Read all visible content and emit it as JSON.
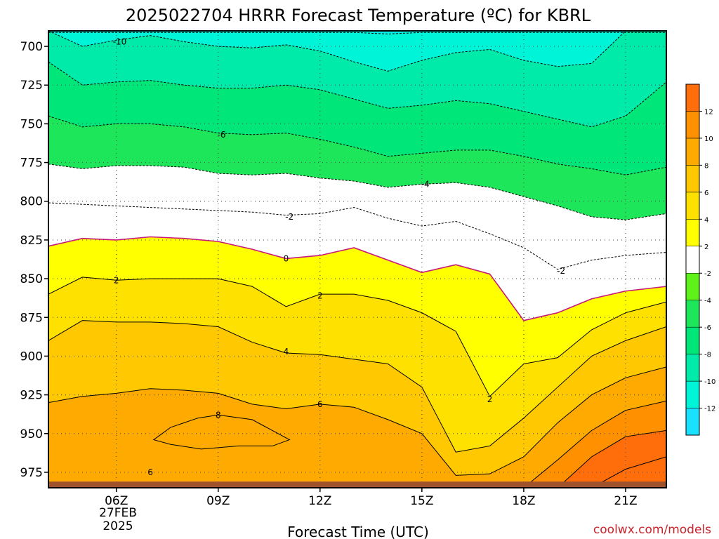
{
  "chart_data": {
    "type": "contour",
    "title": "2025022704 HRRR Forecast Temperature (ºC) for KBRL",
    "xlabel": "Forecast Time (UTC)",
    "credit": "coolwx.com/models",
    "x_ticks": [
      "06Z",
      "09Z",
      "12Z",
      "15Z",
      "18Z",
      "21Z"
    ],
    "x_hours": [
      6,
      9,
      12,
      15,
      18,
      21
    ],
    "date_label": [
      "27FEB",
      "2025"
    ],
    "xlim_hours": [
      4,
      22.2
    ],
    "y_ticks": [
      700,
      725,
      750,
      775,
      800,
      825,
      850,
      875,
      900,
      925,
      950,
      975
    ],
    "ylim": [
      690,
      985
    ],
    "ground_level_hpa": 981,
    "x_hours_profile": [
      4,
      5,
      6,
      7,
      8,
      9,
      10,
      11,
      12,
      13,
      14,
      15,
      16,
      17,
      18,
      19,
      20,
      21,
      22.2
    ],
    "isotherms": [
      {
        "label": "-12",
        "hpa": [
          691,
          691,
          691,
          691,
          691,
          691,
          691,
          691,
          691,
          691,
          692,
          691,
          691,
          691,
          691,
          691,
          691,
          691,
          691
        ]
      },
      {
        "label": "-10",
        "hpa": [
          690,
          700,
          696,
          693,
          697,
          700,
          701,
          699,
          703,
          710,
          716,
          709,
          704,
          702,
          709,
          713,
          711,
          690,
          690
        ]
      },
      {
        "label": "-8",
        "hpa": [
          710,
          725,
          723,
          722,
          725,
          727,
          727,
          725,
          728,
          734,
          740,
          738,
          735,
          737,
          742,
          747,
          752,
          745,
          723
        ]
      },
      {
        "label": "-6",
        "hpa": [
          745,
          752,
          750,
          750,
          752,
          756,
          757,
          756,
          760,
          765,
          771,
          769,
          767,
          767,
          771,
          776,
          779,
          783,
          778
        ]
      },
      {
        "label": "-4",
        "hpa": [
          776,
          779,
          777,
          777,
          778,
          782,
          783,
          782,
          785,
          787,
          791,
          789,
          788,
          791,
          797,
          803,
          810,
          812,
          808
        ]
      },
      {
        "label": "-2",
        "hpa": [
          801,
          802,
          803,
          804,
          805,
          806,
          807,
          809,
          808,
          804,
          811,
          816,
          813,
          821,
          830,
          844,
          838,
          835,
          833
        ]
      },
      {
        "label": "0",
        "hpa": [
          829,
          824,
          825,
          823,
          824,
          826,
          831,
          837,
          835,
          830,
          838,
          846,
          841,
          847,
          877,
          872,
          863,
          858,
          855
        ]
      },
      {
        "label": "2",
        "hpa": [
          860,
          849,
          851,
          850,
          850,
          850,
          855,
          868,
          860,
          860,
          864,
          872,
          884,
          926,
          905,
          901,
          883,
          872,
          865
        ]
      },
      {
        "label": "4",
        "hpa": [
          890,
          877,
          878,
          878,
          879,
          881,
          891,
          898,
          899,
          902,
          905,
          920,
          962,
          958,
          940,
          920,
          900,
          890,
          881
        ]
      },
      {
        "label": "6",
        "hpa": [
          930,
          926,
          924,
          921,
          922,
          924,
          931,
          934,
          931,
          933,
          941,
          950,
          977,
          976,
          965,
          943,
          925,
          914,
          907
        ]
      },
      {
        "label": "8",
        "hpa": [
          985,
          985,
          985,
          985,
          985,
          985,
          985,
          985,
          985,
          985,
          985,
          985,
          985,
          985,
          985,
          967,
          948,
          935,
          929
        ]
      },
      {
        "label": "10",
        "hpa": [
          985,
          985,
          985,
          985,
          985,
          985,
          985,
          985,
          985,
          985,
          985,
          985,
          985,
          985,
          985,
          985,
          965,
          952,
          948
        ]
      },
      {
        "label": "12",
        "hpa": [
          985,
          985,
          985,
          985,
          985,
          985,
          985,
          985,
          985,
          985,
          985,
          985,
          985,
          985,
          985,
          985,
          985,
          973,
          965
        ]
      }
    ],
    "warm_pocket_8": {
      "label": "8",
      "hours": [
        7.1,
        7.6,
        8.4,
        9.0,
        10.0,
        11.1,
        10.6,
        9.6,
        8.5,
        7.6,
        7.1
      ],
      "hpa": [
        954,
        946,
        940,
        938,
        941,
        954,
        958,
        958,
        960,
        957,
        954
      ]
    },
    "contour_labels": [
      {
        "text": "-10",
        "hour": 6.1,
        "hpa": 697
      },
      {
        "text": "-6",
        "hour": 9.1,
        "hpa": 757
      },
      {
        "text": "-4",
        "hour": 15.1,
        "hpa": 789
      },
      {
        "text": "-2",
        "hour": 11.1,
        "hpa": 810
      },
      {
        "text": "-2",
        "hour": 19.1,
        "hpa": 845
      },
      {
        "text": "0",
        "hour": 11.0,
        "hpa": 837
      },
      {
        "text": "2",
        "hour": 6.0,
        "hpa": 851
      },
      {
        "text": "2",
        "hour": 12.0,
        "hpa": 861
      },
      {
        "text": "2",
        "hour": 17.0,
        "hpa": 928
      },
      {
        "text": "4",
        "hour": 11.0,
        "hpa": 897
      },
      {
        "text": "6",
        "hour": 12.0,
        "hpa": 931
      },
      {
        "text": "6",
        "hour": 7.0,
        "hpa": 975
      },
      {
        "text": "8",
        "hour": 9.0,
        "hpa": 938
      }
    ],
    "colorbar": {
      "ticks": [
        "-12",
        "-10",
        "-8",
        "-6",
        "-4",
        "-2",
        "2",
        "4",
        "6",
        "8",
        "10",
        "12"
      ],
      "colors": [
        "#19e1ff",
        "#00f5d8",
        "#00ebaa",
        "#00e678",
        "#1ee65a",
        "#5ef11a",
        "#ffffff",
        "#ffff00",
        "#ffe100",
        "#ffc800",
        "#ffaa00",
        "#ff9100",
        "#ff6e0a"
      ]
    },
    "band_colors": [
      "#00f0e6",
      "#00f5d8",
      "#00ebaa",
      "#00e678",
      "#1ee65a",
      "#ffffff",
      "#ffffff",
      "#ffff00",
      "#ffe100",
      "#ffc800",
      "#ffaa00",
      "#ff9100",
      "#ff6e0a"
    ],
    "ground_color": "#a0522d",
    "freezing_line_color": "#c8187a"
  }
}
